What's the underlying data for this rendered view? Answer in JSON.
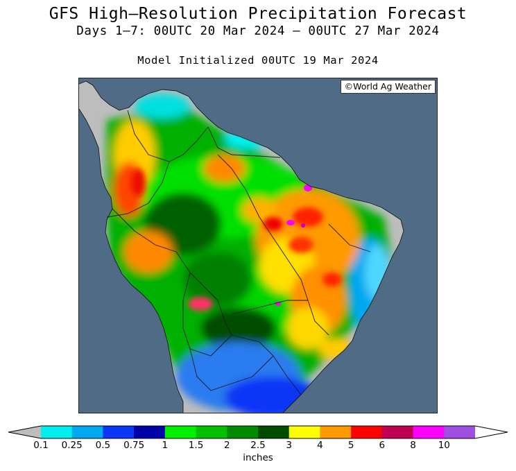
{
  "header": {
    "title": "GFS High–Resolution Precipitation Forecast",
    "subtitle": "Days 1–7: 00UTC 20 Mar 2024 – 00UTC 27 Mar 2024",
    "init": "Model Initialized 00UTC 19 Mar 2024"
  },
  "map": {
    "copyright": "©World Ag Weather",
    "region": "South America",
    "colors": {
      "ocean": "#4f6b85",
      "land_no_precip": "#bdbdbd",
      "border": "#1a1a1a"
    }
  },
  "legend": {
    "units": "inches",
    "ticks": [
      "0.1",
      "0.25",
      "0.5",
      "0.75",
      "1",
      "1.5",
      "2",
      "2.5",
      "3",
      "4",
      "5",
      "6",
      "8",
      "10"
    ],
    "bins": [
      {
        "color": "#00eeee"
      },
      {
        "color": "#00a8f0"
      },
      {
        "color": "#0b36f5"
      },
      {
        "color": "#0000a8"
      },
      {
        "color": "#00f000"
      },
      {
        "color": "#00c000"
      },
      {
        "color": "#008a00"
      },
      {
        "color": "#004d00"
      },
      {
        "color": "#ffff00"
      },
      {
        "color": "#ff9a00"
      },
      {
        "color": "#ff0000"
      },
      {
        "color": "#c00050"
      },
      {
        "color": "#ff00ff"
      },
      {
        "color": "#a050e0"
      }
    ],
    "under_color": "#bdbdbd",
    "over_color": "#ffffff"
  }
}
